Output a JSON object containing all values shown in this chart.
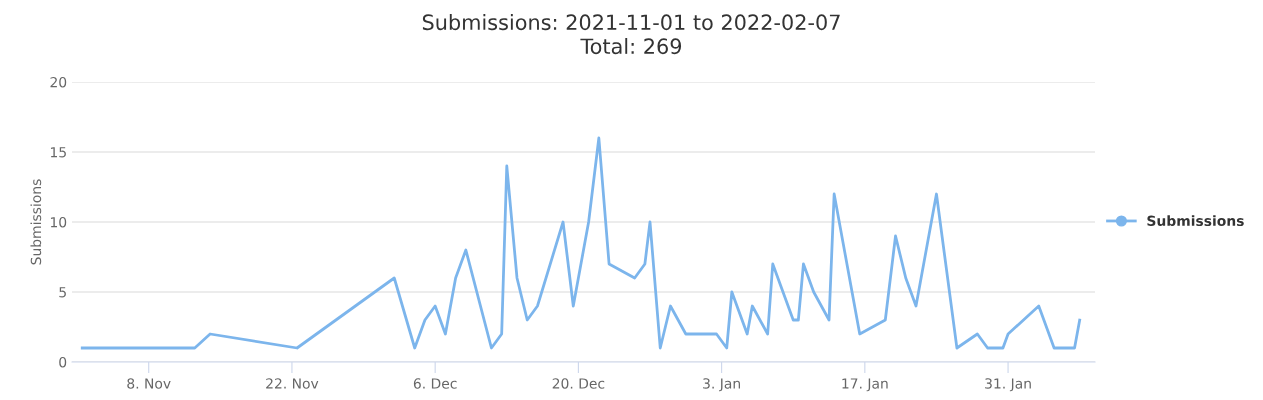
{
  "chart_data": {
    "type": "line",
    "title": "Submissions: 2021-11-01 to 2022-02-07",
    "subtitle": "Total: 269",
    "ylabel": "Submissions",
    "x": [
      "2021-11-01T12:00",
      "2021-11-12T12:00",
      "2021-11-14",
      "2021-11-22T12:00",
      "2021-12-02",
      "2021-12-04",
      "2021-12-05",
      "2021-12-06",
      "2021-12-07",
      "2021-12-08",
      "2021-12-09",
      "2021-12-11T12:00",
      "2021-12-12T12:00",
      "2021-12-13",
      "2021-12-14",
      "2021-12-15",
      "2021-12-16",
      "2021-12-18T12:00",
      "2021-12-19T12:00",
      "2021-12-20T12:00",
      "2021-12-21",
      "2021-12-22",
      "2021-12-23",
      "2021-12-25T12:00",
      "2021-12-26T12:00",
      "2021-12-27",
      "2021-12-28",
      "2021-12-29",
      "2021-12-30T12:00",
      "2022-01-02T12:00",
      "2022-01-03T12:00",
      "2022-01-04",
      "2022-01-05T12:00",
      "2022-01-06",
      "2022-01-07T12:00",
      "2022-01-08",
      "2022-01-10",
      "2022-01-10T12:00",
      "2022-01-11",
      "2022-01-12",
      "2022-01-13T12:00",
      "2022-01-14",
      "2022-01-16T12:00",
      "2022-01-19",
      "2022-01-20",
      "2022-01-21",
      "2022-01-22",
      "2022-01-24",
      "2022-01-26",
      "2022-01-28",
      "2022-01-29",
      "2022-01-30T12:00",
      "2022-01-31",
      "2022-02-03",
      "2022-02-04T12:00",
      "2022-02-06T12:00",
      "2022-02-07"
    ],
    "series": [
      {
        "name": "Submissions",
        "color": "#7cb5ec",
        "values": [
          1,
          1,
          2,
          1,
          6,
          1,
          3,
          4,
          2,
          6,
          8,
          1,
          2,
          14,
          6,
          3,
          4,
          10,
          4,
          8,
          10,
          16,
          7,
          6,
          7,
          10,
          1,
          4,
          2,
          2,
          1,
          5,
          2,
          4,
          2,
          7,
          3,
          3,
          7,
          5,
          3,
          12,
          2,
          3,
          9,
          6,
          4,
          12,
          1,
          2,
          1,
          1,
          2,
          4,
          1,
          1,
          3
        ]
      }
    ],
    "xlim": [
      "2021-10-31T12:00",
      "2022-02-08T12:00"
    ],
    "xticks": [
      {
        "value": "2021-11-08",
        "label": "8. Nov"
      },
      {
        "value": "2021-11-22",
        "label": "22. Nov"
      },
      {
        "value": "2021-12-06",
        "label": "6. Dec"
      },
      {
        "value": "2021-12-20",
        "label": "20. Dec"
      },
      {
        "value": "2022-01-03",
        "label": "3. Jan"
      },
      {
        "value": "2022-01-17",
        "label": "17. Jan"
      },
      {
        "value": "2022-01-31",
        "label": "31. Jan"
      }
    ],
    "ylim": [
      0,
      20
    ],
    "yticks": [
      0,
      5,
      10,
      15,
      20
    ],
    "grid": "y",
    "legend": "right",
    "marker": "none",
    "line_style": "solid"
  }
}
